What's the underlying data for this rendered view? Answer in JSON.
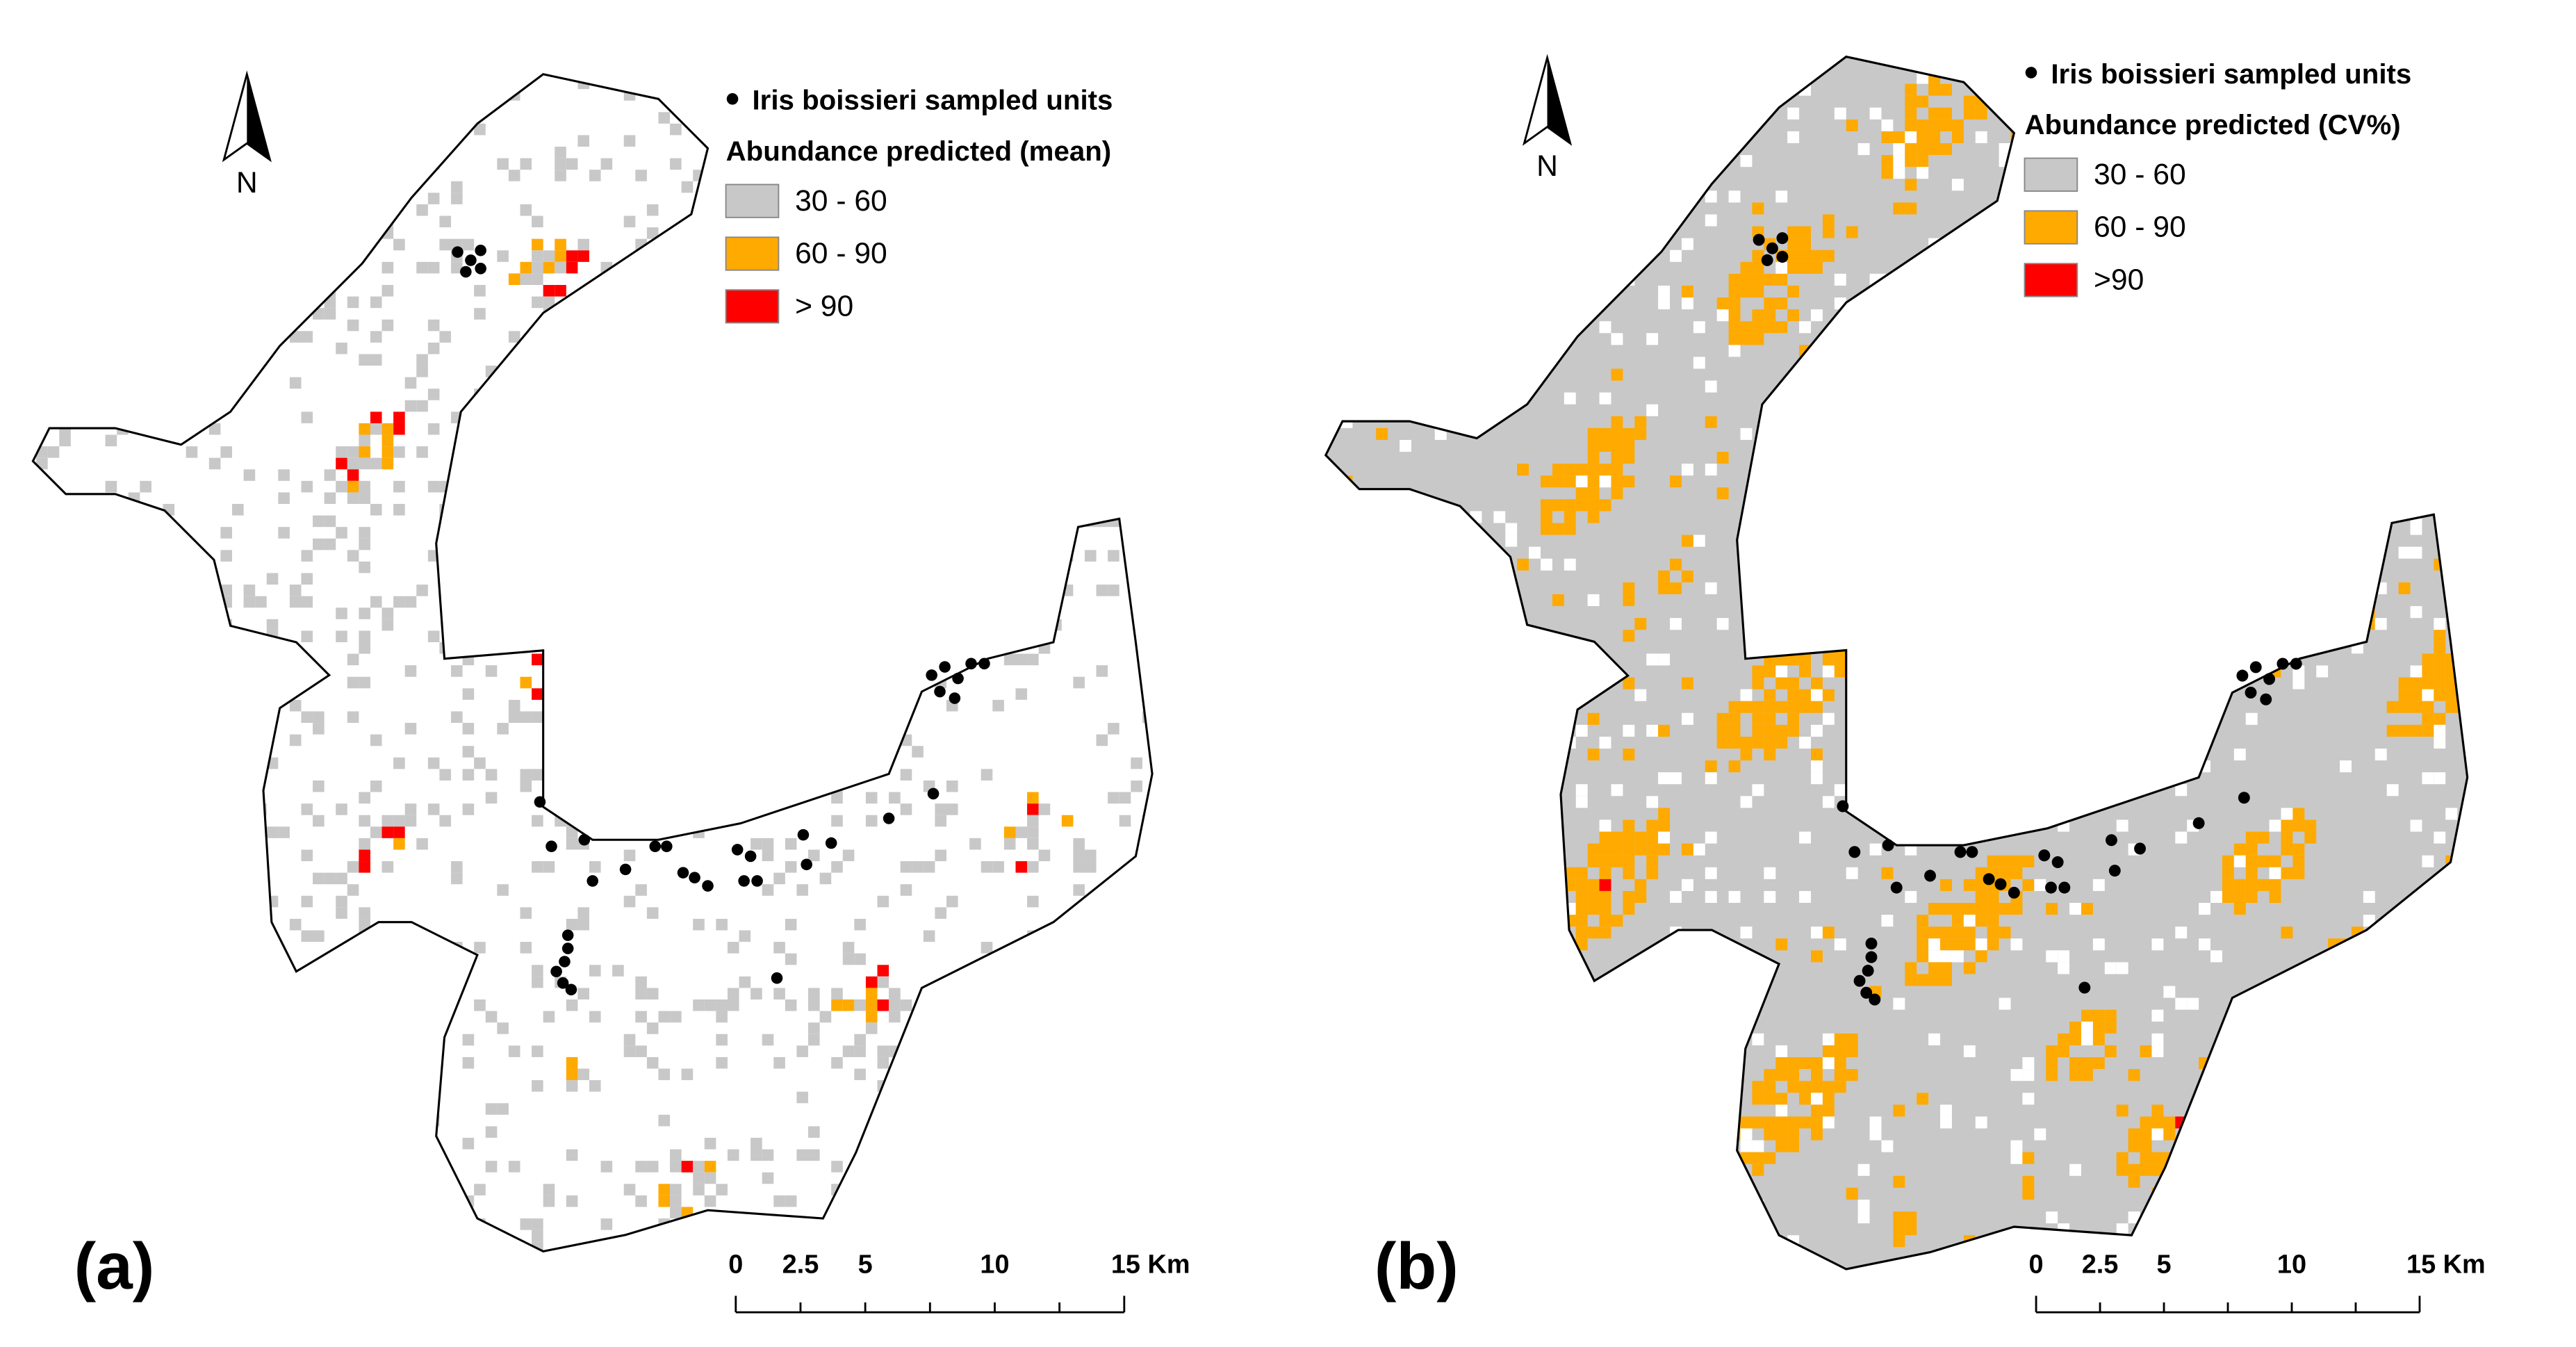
{
  "panels": [
    {
      "label": "(a)",
      "north": "N",
      "legend": {
        "points": "Iris boissieri sampled units",
        "title": "Abundance predicted (mean)",
        "classes": [
          {
            "label": "30 - 60",
            "color": "#c8c8c8"
          },
          {
            "label": "60 - 90",
            "color": "#ffaa00"
          },
          {
            "label": "> 90",
            "color": "#ff0000"
          }
        ]
      },
      "scale": [
        "0",
        "2.5",
        "5",
        "10",
        "15 Km"
      ]
    },
    {
      "label": "(b)",
      "north": "N",
      "legend": {
        "points": "Iris boissieri sampled units",
        "title": "Abundance predicted (CV%)",
        "classes": [
          {
            "label": "30 - 60",
            "color": "#c8c8c8"
          },
          {
            "label": "60 - 90",
            "color": "#ffaa00"
          },
          {
            "label": ">90",
            "color": "#ff0000"
          }
        ]
      },
      "scale": [
        "0",
        "2.5",
        "5",
        "10",
        "15 Km"
      ]
    }
  ]
}
